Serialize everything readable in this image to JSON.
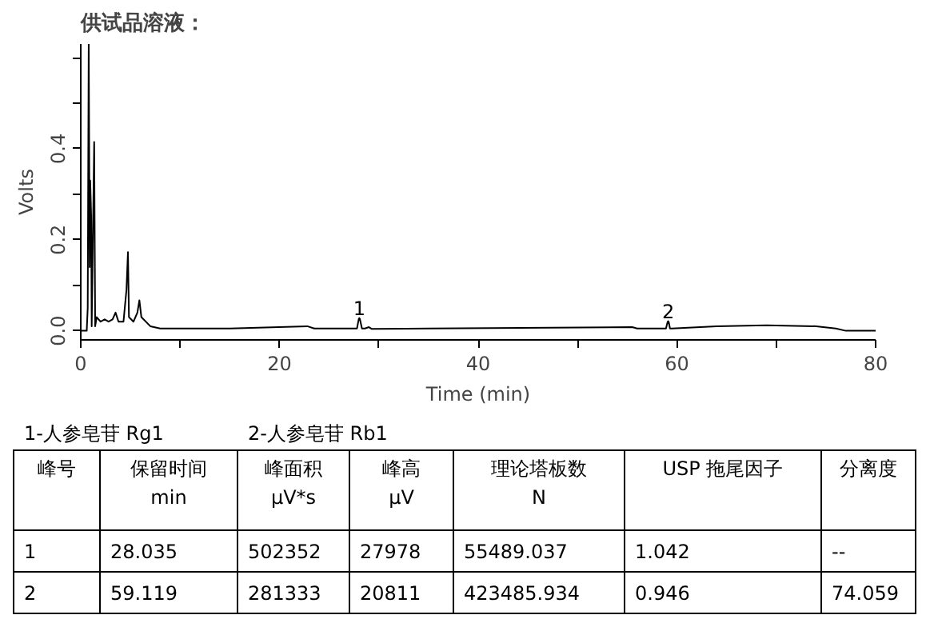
{
  "chart_data": [
    {
      "type": "line",
      "title": "供试品溶液：",
      "xlabel": "Time (min)",
      "ylabel": "Volts",
      "xlim": [
        0,
        80
      ],
      "ylim": [
        -0.02,
        0.63
      ],
      "xticks": [
        0,
        {
          "value": 10,
          "label": null
        },
        20,
        {
          "value": 30,
          "label": null
        },
        40,
        {
          "value": 50,
          "label": null
        },
        60,
        {
          "value": 70,
          "label": null
        },
        80
      ],
      "yticks": [
        {
          "value": 0.0,
          "label": "0.0"
        },
        {
          "value": 0.1,
          "label": null
        },
        {
          "value": 0.2,
          "label": "0.2"
        },
        {
          "value": 0.3,
          "label": null
        },
        {
          "value": 0.4,
          "label": "0.4"
        },
        {
          "value": 0.5,
          "label": null
        },
        {
          "value": 0.6,
          "label": null
        }
      ],
      "grid": false,
      "marker": "none",
      "line_style": "solid",
      "series": [
        {
          "color": "#000000",
          "x": [
            0,
            0.6,
            0.7,
            0.8,
            0.9,
            0.95,
            1.05,
            1.1,
            1.35,
            1.45,
            1.6,
            2.0,
            2.4,
            2.8,
            3.2,
            3.5,
            3.8,
            4.3,
            4.6,
            4.75,
            4.85,
            5.3,
            5.7,
            5.9,
            6.1,
            7,
            8,
            15,
            22.8,
            23.5,
            27.5,
            27.8,
            27.98,
            28.035,
            28.09,
            28.3,
            28.6,
            29.0,
            29.3,
            35,
            55.5,
            56,
            58.9,
            59.06,
            59.119,
            59.18,
            59.3,
            59.5,
            64,
            69,
            74,
            76,
            77,
            80
          ],
          "values": [
            0,
            0,
            0.05,
            0.63,
            0.14,
            0.33,
            0.25,
            0.01,
            0.415,
            0.01,
            0.03,
            0.02,
            0.025,
            0.02,
            0.025,
            0.04,
            0.02,
            0.02,
            0.09,
            0.173,
            0.03,
            0.02,
            0.04,
            0.067,
            0.03,
            0.01,
            0.005,
            0.005,
            0.01,
            0.005,
            0.005,
            0.005,
            0.026,
            0.028,
            0.026,
            0.005,
            0.005,
            0.008,
            0.004,
            0.005,
            0.008,
            0.005,
            0.005,
            0.019,
            0.021,
            0.019,
            0.005,
            0.005,
            0.01,
            0.012,
            0.01,
            0.005,
            0.0,
            0.0
          ]
        }
      ],
      "annotations": [
        {
          "text": "1",
          "x": 28.035,
          "y": 0.028
        },
        {
          "text": "2",
          "x": 59.119,
          "y": 0.021
        }
      ]
    },
    {
      "type": "other",
      "annotations": [
        "1-人参皂苷 Rg1",
        "2-人参皂苷 Rb1",
        "峰号",
        "保留时间\nmin",
        "峰面积\nμV*s",
        "峰高\nμV",
        "理论塔板数\nN",
        "USP 拖尾因子",
        "分离度",
        "1",
        "28.035",
        "502352",
        "27978",
        "55489.037",
        "1.042",
        "--",
        "2",
        "59.119",
        "281333",
        "20811",
        "423485.934",
        "0.946",
        "74.059"
      ]
    }
  ]
}
